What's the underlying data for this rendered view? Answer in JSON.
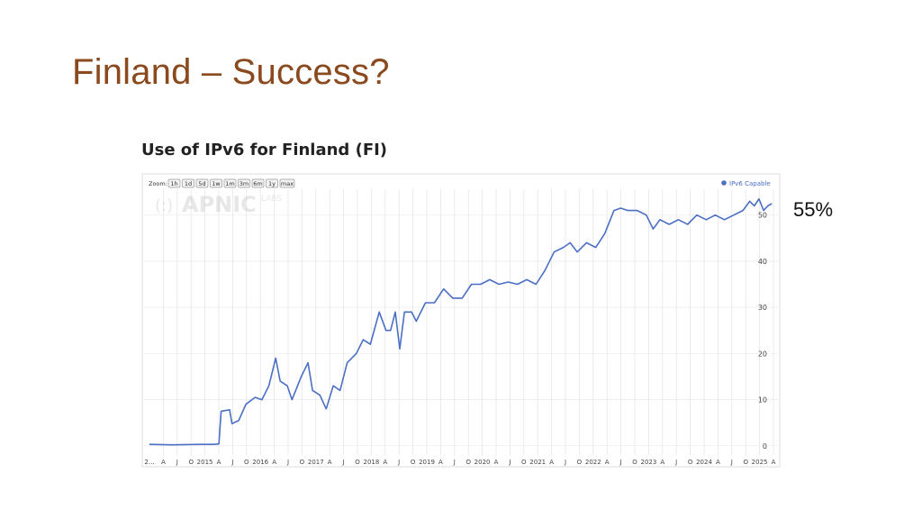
{
  "slide": {
    "title": "Finland – Success?",
    "callout": "55%"
  },
  "colors": {
    "title": "#8a4a1e",
    "series": "#4a6fc4",
    "grid": "#e2e2e2"
  },
  "chart_data": {
    "type": "line",
    "title": "Use of IPv6 for Finland (FI)",
    "watermark": {
      "logo": "APNIC",
      "sub": "LABS"
    },
    "zoom": {
      "label": "Zoom:",
      "buttons": [
        "1h",
        "1d",
        "5d",
        "1w",
        "1m",
        "3m",
        "6m",
        "1y",
        "max"
      ]
    },
    "legend": {
      "label": "IPv6 Capable",
      "position": "top-right"
    },
    "x_ticks": [
      "2...",
      "A",
      "J",
      "O",
      "2015",
      "A",
      "J",
      "O",
      "2016",
      "A",
      "J",
      "O",
      "2017",
      "A",
      "J",
      "O",
      "2018",
      "A",
      "J",
      "O",
      "2019",
      "A",
      "J",
      "O",
      "2020",
      "A",
      "J",
      "O",
      "2021",
      "A",
      "J",
      "O",
      "2022",
      "A",
      "J",
      "O",
      "2023",
      "A",
      "J",
      "O",
      "2024",
      "A",
      "J",
      "O",
      "2025",
      "A"
    ],
    "y_ticks": [
      0,
      10,
      20,
      30,
      40,
      50
    ],
    "xlim": [
      "2014-01-01",
      "2025-04-15"
    ],
    "ylim": [
      -2,
      56
    ],
    "grid": true,
    "series": [
      {
        "values": [
          [
            "2014-01-01",
            0.3
          ],
          [
            "2014-06-01",
            0.2
          ],
          [
            "2014-12-01",
            0.3
          ],
          [
            "2015-03-01",
            0.3
          ],
          [
            "2015-04-05",
            0.4
          ],
          [
            "2015-04-20",
            7.5
          ],
          [
            "2015-06-15",
            7.8
          ],
          [
            "2015-07-01",
            4.8
          ],
          [
            "2015-08-15",
            5.5
          ],
          [
            "2015-10-01",
            9.0
          ],
          [
            "2015-12-01",
            10.5
          ],
          [
            "2016-01-15",
            10.0
          ],
          [
            "2016-03-01",
            13.0
          ],
          [
            "2016-04-15",
            19.0
          ],
          [
            "2016-05-15",
            14.0
          ],
          [
            "2016-07-01",
            13.0
          ],
          [
            "2016-08-01",
            10.0
          ],
          [
            "2016-10-01",
            15.0
          ],
          [
            "2016-11-15",
            18.0
          ],
          [
            "2016-12-15",
            12.0
          ],
          [
            "2017-02-01",
            11.0
          ],
          [
            "2017-03-15",
            8.0
          ],
          [
            "2017-05-01",
            13.0
          ],
          [
            "2017-06-15",
            12.0
          ],
          [
            "2017-08-01",
            18.0
          ],
          [
            "2017-10-01",
            20.0
          ],
          [
            "2017-11-15",
            23.0
          ],
          [
            "2018-01-01",
            22.0
          ],
          [
            "2018-03-01",
            29.0
          ],
          [
            "2018-04-15",
            25.0
          ],
          [
            "2018-05-15",
            25.0
          ],
          [
            "2018-06-15",
            29.0
          ],
          [
            "2018-07-15",
            21.0
          ],
          [
            "2018-08-15",
            29.0
          ],
          [
            "2018-10-01",
            29.0
          ],
          [
            "2018-11-01",
            27.0
          ],
          [
            "2019-01-01",
            31.0
          ],
          [
            "2019-03-01",
            31.0
          ],
          [
            "2019-05-01",
            34.0
          ],
          [
            "2019-07-01",
            32.0
          ],
          [
            "2019-09-01",
            32.0
          ],
          [
            "2019-11-01",
            35.0
          ],
          [
            "2020-01-01",
            35.0
          ],
          [
            "2020-03-01",
            36.0
          ],
          [
            "2020-05-01",
            35.0
          ],
          [
            "2020-07-01",
            35.5
          ],
          [
            "2020-09-01",
            35.0
          ],
          [
            "2020-11-01",
            36.0
          ],
          [
            "2021-01-01",
            35.0
          ],
          [
            "2021-03-01",
            38.0
          ],
          [
            "2021-05-01",
            42.0
          ],
          [
            "2021-07-01",
            43.0
          ],
          [
            "2021-08-15",
            44.0
          ],
          [
            "2021-10-01",
            42.0
          ],
          [
            "2021-12-01",
            44.0
          ],
          [
            "2022-02-01",
            43.0
          ],
          [
            "2022-04-01",
            46.0
          ],
          [
            "2022-06-01",
            51.0
          ],
          [
            "2022-07-15",
            51.5
          ],
          [
            "2022-09-01",
            51.0
          ],
          [
            "2022-11-01",
            51.0
          ],
          [
            "2023-01-01",
            50.0
          ],
          [
            "2023-02-15",
            47.0
          ],
          [
            "2023-04-01",
            49.0
          ],
          [
            "2023-06-01",
            48.0
          ],
          [
            "2023-08-01",
            49.0
          ],
          [
            "2023-10-01",
            48.0
          ],
          [
            "2023-12-01",
            50.0
          ],
          [
            "2024-02-01",
            49.0
          ],
          [
            "2024-04-01",
            50.0
          ],
          [
            "2024-06-01",
            49.0
          ],
          [
            "2024-08-01",
            50.0
          ],
          [
            "2024-10-01",
            51.0
          ],
          [
            "2024-11-15",
            53.0
          ],
          [
            "2024-12-15",
            52.0
          ],
          [
            "2025-01-15",
            53.5
          ],
          [
            "2025-02-15",
            51.0
          ],
          [
            "2025-03-15",
            52.0
          ],
          [
            "2025-04-10",
            52.5
          ]
        ]
      }
    ]
  }
}
